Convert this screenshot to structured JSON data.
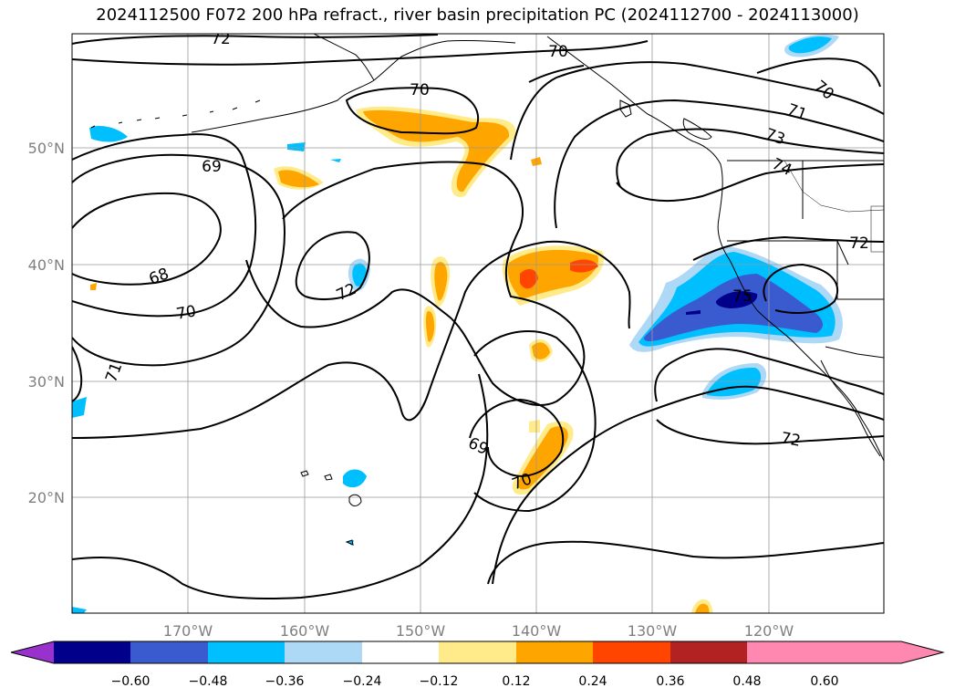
{
  "title": "2024112500 F072 200 hPa refract., river basin precipitation PC (2024112700 - 2024113000)",
  "lon_ticks": [
    "170°W",
    "160°W",
    "150°W",
    "140°W",
    "130°W",
    "120°W"
  ],
  "lat_ticks": [
    "50°N",
    "40°N",
    "30°N",
    "20°N"
  ],
  "colorbar": {
    "ticks": [
      "−0.60",
      "−0.48",
      "−0.36",
      "−0.24",
      "−0.12",
      "0.12",
      "0.24",
      "0.36",
      "0.48",
      "0.60"
    ],
    "colors": [
      "#9932cc",
      "#00008b",
      "#3a5bd0",
      "#00bfff",
      "#add8f6",
      "#ffffff",
      "#ffeb8a",
      "#ffa500",
      "#ff4500",
      "#b22222",
      "#ff88b0"
    ]
  },
  "contour_labels": [
    {
      "text": "72"
    },
    {
      "text": "70"
    },
    {
      "text": "70"
    },
    {
      "text": "70"
    },
    {
      "text": "71"
    },
    {
      "text": "73"
    },
    {
      "text": "74"
    },
    {
      "text": "69"
    },
    {
      "text": "68"
    },
    {
      "text": "70"
    },
    {
      "text": "72"
    },
    {
      "text": "71"
    },
    {
      "text": "69"
    },
    {
      "text": "70"
    },
    {
      "text": "72"
    },
    {
      "text": "72"
    },
    {
      "text": "75"
    }
  ]
}
